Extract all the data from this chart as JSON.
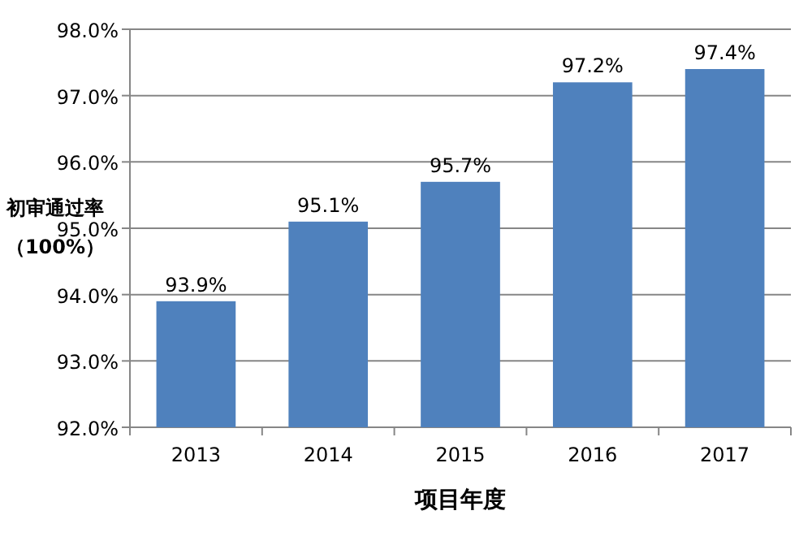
{
  "chart_data": {
    "type": "bar",
    "categories": [
      "2013",
      "2014",
      "2015",
      "2016",
      "2017"
    ],
    "values": [
      93.9,
      95.1,
      95.7,
      97.2,
      97.4
    ],
    "value_labels": [
      "93.9%",
      "95.1%",
      "95.7%",
      "97.2%",
      "97.4%"
    ],
    "color": "#4f81bd",
    "ylim": [
      92,
      98
    ],
    "yticks": [
      {
        "value": 92,
        "label": "92.0%"
      },
      {
        "value": 93,
        "label": "93.0%"
      },
      {
        "value": 94,
        "label": "94.0%"
      },
      {
        "value": 95,
        "label": "95.0%"
      },
      {
        "value": 96,
        "label": "96.0%"
      },
      {
        "value": 97,
        "label": "97.0%"
      },
      {
        "value": 98,
        "label": "98.0%"
      }
    ],
    "ylabel": "初审通过率（100%）",
    "xlabel": "项目年度",
    "grid": "y"
  }
}
